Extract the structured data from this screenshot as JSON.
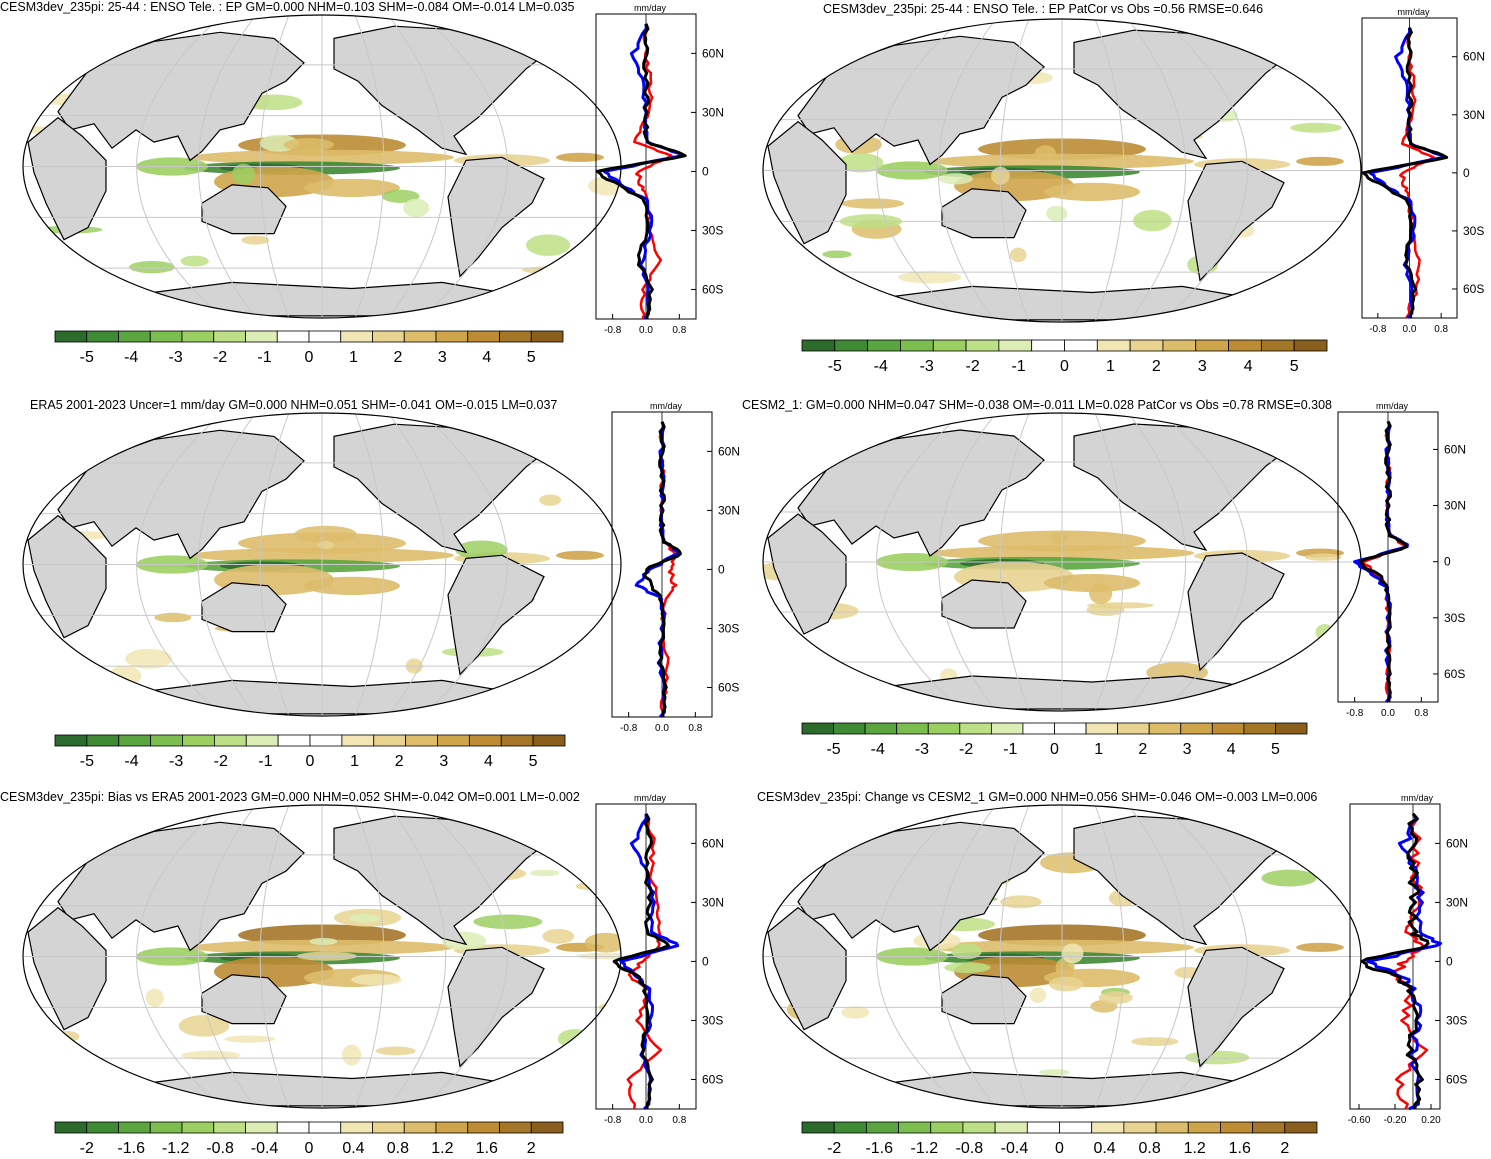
{
  "colors": {
    "land": "#d4d4d4",
    "ocean": "#ffffff",
    "grid": "#c8c8c8",
    "green_scale": [
      "#2d6b2d",
      "#3f8a35",
      "#5aa53f",
      "#7bbd4f",
      "#9ccf62",
      "#bddf85",
      "#dcedb5"
    ],
    "brown_scale": [
      "#f1e6b4",
      "#e8d391",
      "#ddbd6a",
      "#cfa54b",
      "#bd8c34",
      "#a47628",
      "#8a5e1c"
    ],
    "line_red": "#ff0000",
    "line_blue": "#0000ff",
    "line_black": "#000000"
  },
  "zonal_units": "mm/day",
  "panels": [
    {
      "id": "p1",
      "title": "CESM3dev_235pi: 25-44 : ENSO Tele. : EP GM=0.000 NHM=0.103 SHM=-0.084 OM=-0.014 LM=0.035",
      "lat_labels": [
        "60N",
        "30N",
        "0",
        "30S",
        "60S"
      ],
      "zonal_ticks": [
        "-0.8",
        "0.0",
        "0.8"
      ],
      "colorbar_labels": [
        "-5",
        "-4",
        "-3",
        "-2",
        "-1",
        "0",
        "1",
        "2",
        "3",
        "4",
        "5"
      ],
      "strength": 1.0
    },
    {
      "id": "p2",
      "title": "CESM3dev_235pi: 25-44 : ENSO Tele. : EP PatCor vs Obs =0.56 RMSE=0.646",
      "lat_labels": [
        "60N",
        "30N",
        "0",
        "30S",
        "60S"
      ],
      "zonal_ticks": [
        "-0.8",
        "0.0",
        "0.8"
      ],
      "colorbar_labels": [
        "-5",
        "-4",
        "-3",
        "-2",
        "-1",
        "0",
        "1",
        "2",
        "3",
        "4",
        "5"
      ],
      "strength": 1.0
    },
    {
      "id": "p3",
      "title": "ERA5 2001-2023 Uncer=1 mm/day GM=0.000 NHM=0.051 SHM=-0.041 OM=-0.015 LM=0.037",
      "lat_labels": [
        "60N",
        "30N",
        "0",
        "30S",
        "60S"
      ],
      "zonal_ticks": [
        "-0.8",
        "0.0",
        "0.8"
      ],
      "colorbar_labels": [
        "-5",
        "-4",
        "-3",
        "-2",
        "-1",
        "0",
        "1",
        "2",
        "3",
        "4",
        "5"
      ],
      "strength": 0.55
    },
    {
      "id": "p4",
      "title": "CESM2_1: GM=0.000 NHM=0.047 SHM=-0.038 OM=-0.011 LM=0.028 PatCor vs Obs =0.78 RMSE=0.308",
      "lat_labels": [
        "60N",
        "30N",
        "0",
        "30S",
        "60S"
      ],
      "zonal_ticks": [
        "-0.8",
        "0.0",
        "0.8"
      ],
      "colorbar_labels": [
        "-5",
        "-4",
        "-3",
        "-2",
        "-1",
        "0",
        "1",
        "2",
        "3",
        "4",
        "5"
      ],
      "strength": 0.45
    },
    {
      "id": "p5",
      "title": "CESM3dev_235pi: Bias vs ERA5 2001-2023 GM=0.000 NHM=0.052 SHM=-0.042 OM=0.001 LM=-0.002",
      "lat_labels": [
        "60N",
        "30N",
        "0",
        "30S",
        "60S"
      ],
      "zonal_ticks": [
        "-0.8",
        "0.0",
        "0.8"
      ],
      "colorbar_labels": [
        "-2",
        "-1.6",
        "-1.2",
        "-0.8",
        "-0.4",
        "0",
        "0.4",
        "0.8",
        "1.2",
        "1.6",
        "2"
      ],
      "strength": 1.2
    },
    {
      "id": "p6",
      "title": "CESM3dev_235pi: Change vs CESM2_1 GM=0.000 NHM=0.056 SHM=-0.046 OM=-0.003 LM=0.006",
      "lat_labels": [
        "60N",
        "30N",
        "0",
        "30S",
        "60S"
      ],
      "zonal_ticks": [
        "-0.60",
        "-0.20",
        "0.20"
      ],
      "colorbar_labels": [
        "-2",
        "-1.6",
        "-1.2",
        "-0.8",
        "-0.4",
        "0",
        "0.4",
        "0.8",
        "1.2",
        "1.6",
        "2"
      ],
      "strength": 1.2
    }
  ],
  "chart_data": [
    {
      "type": "heatmap",
      "title": "CESM3dev_235pi: 25-44 : ENSO Tele. : EP GM=0.000 NHM=0.103 SHM=-0.084 OM=-0.014 LM=0.035",
      "colorbar_range": [
        -5,
        5
      ],
      "zonal_xlim": [
        -1.2,
        1.2
      ],
      "zonal_ylim": [
        -75,
        80
      ],
      "zonal_lat": [
        -75,
        -60,
        -45,
        -30,
        -15,
        -8,
        0,
        8,
        15,
        30,
        45,
        60,
        75
      ],
      "zonal_black": [
        0.0,
        0.1,
        -0.2,
        0.0,
        0.0,
        -0.6,
        -1.2,
        1.0,
        0.0,
        0.0,
        0.0,
        0.0,
        0.0
      ],
      "zonal_blue": [
        0.0,
        0.05,
        -0.1,
        0.1,
        0.05,
        -0.5,
        -1.0,
        0.9,
        0.0,
        0.0,
        -0.1,
        -0.3,
        0.0
      ],
      "zonal_red": [
        -0.1,
        -0.05,
        0.3,
        0.1,
        0.05,
        -0.1,
        -0.2,
        0.6,
        -0.3,
        0.1,
        0.1,
        0.0,
        0.0
      ]
    },
    {
      "type": "heatmap",
      "title": "CESM3dev_235pi: 25-44 : ENSO Tele. : EP PatCor vs Obs =0.56 RMSE=0.646",
      "colorbar_range": [
        -5,
        5
      ],
      "zonal_xlim": [
        -1.2,
        1.2
      ],
      "zonal_ylim": [
        -75,
        80
      ],
      "zonal_lat": [
        -75,
        -60,
        -45,
        -30,
        -15,
        -8,
        0,
        8,
        15,
        30,
        45,
        60,
        75
      ],
      "zonal_black": [
        0.0,
        0.1,
        -0.1,
        0.0,
        0.0,
        -0.6,
        -1.2,
        1.0,
        0.0,
        0.0,
        0.0,
        0.0,
        0.0
      ],
      "zonal_blue": [
        0.0,
        0.05,
        -0.1,
        0.1,
        0.05,
        -0.5,
        -1.0,
        0.9,
        0.0,
        0.0,
        -0.1,
        -0.3,
        0.0
      ],
      "zonal_red": [
        -0.1,
        0.2,
        0.2,
        0.1,
        0.0,
        -0.1,
        -0.2,
        0.6,
        -0.2,
        0.1,
        0.1,
        0.0,
        0.0
      ]
    },
    {
      "type": "heatmap",
      "title": "ERA5 2001-2023 Uncer=1 mm/day GM=0.000 NHM=0.051 SHM=-0.041 OM=-0.015 LM=0.037",
      "colorbar_range": [
        -5,
        5
      ],
      "zonal_xlim": [
        -1.2,
        1.2
      ],
      "zonal_ylim": [
        -75,
        80
      ],
      "zonal_lat": [
        -75,
        -60,
        -45,
        -30,
        -15,
        -8,
        0,
        8,
        15,
        30,
        45,
        60,
        75
      ],
      "zonal_black": [
        0.0,
        0.05,
        -0.05,
        0.0,
        0.0,
        -0.3,
        -0.4,
        0.5,
        0.0,
        0.0,
        0.0,
        0.0,
        0.0
      ],
      "zonal_blue": [
        0.0,
        0.05,
        -0.05,
        0.0,
        0.0,
        -0.6,
        -0.3,
        0.4,
        0.0,
        0.0,
        0.0,
        0.0,
        0.0
      ],
      "zonal_red": [
        -0.05,
        0.1,
        0.1,
        0.0,
        0.1,
        0.3,
        0.2,
        0.3,
        0.0,
        0.0,
        0.0,
        0.0,
        0.0
      ]
    },
    {
      "type": "heatmap",
      "title": "CESM2_1: GM=0.000 NHM=0.047 SHM=-0.038 OM=-0.011 LM=0.028 PatCor vs Obs =0.78 RMSE=0.308",
      "colorbar_range": [
        -5,
        5
      ],
      "zonal_xlim": [
        -1.2,
        1.2
      ],
      "zonal_ylim": [
        -75,
        80
      ],
      "zonal_lat": [
        -75,
        -60,
        -45,
        -30,
        -15,
        -8,
        0,
        8,
        15,
        30,
        45,
        60,
        75
      ],
      "zonal_black": [
        0.0,
        0.0,
        0.0,
        0.0,
        0.0,
        -0.2,
        -0.7,
        0.5,
        0.0,
        0.0,
        0.0,
        0.0,
        0.0
      ],
      "zonal_blue": [
        0.0,
        0.0,
        0.0,
        0.0,
        0.0,
        -0.3,
        -0.8,
        0.5,
        0.0,
        0.0,
        0.0,
        0.0,
        0.0
      ],
      "zonal_red": [
        0.0,
        0.0,
        0.0,
        0.0,
        0.0,
        -0.2,
        -0.6,
        0.4,
        0.0,
        0.0,
        0.0,
        0.0,
        0.0
      ]
    },
    {
      "type": "heatmap",
      "title": "CESM3dev_235pi: Bias vs ERA5 2001-2023 GM=0.000 NHM=0.052 SHM=-0.042 OM=0.001 LM=-0.002",
      "colorbar_range": [
        -2,
        2
      ],
      "zonal_xlim": [
        -1.2,
        1.2
      ],
      "zonal_ylim": [
        -75,
        80
      ],
      "zonal_lat": [
        -75,
        -60,
        -45,
        -30,
        -15,
        -8,
        0,
        8,
        15,
        30,
        45,
        60,
        75
      ],
      "zonal_black": [
        0.0,
        0.1,
        -0.1,
        0.0,
        0.0,
        -0.2,
        -0.8,
        0.6,
        0.0,
        0.1,
        0.0,
        0.1,
        0.0
      ],
      "zonal_blue": [
        0.0,
        0.1,
        -0.1,
        0.1,
        0.1,
        -0.2,
        -0.6,
        0.8,
        0.1,
        0.2,
        0.0,
        -0.3,
        0.0
      ],
      "zonal_red": [
        -0.3,
        -0.4,
        0.3,
        -0.2,
        0.1,
        -0.4,
        -0.1,
        0.3,
        0.3,
        0.3,
        0.1,
        0.2,
        0.0
      ]
    },
    {
      "type": "heatmap",
      "title": "CESM3dev_235pi: Change vs CESM2_1 GM=0.000 NHM=0.056 SHM=-0.046 OM=-0.003 LM=0.006",
      "colorbar_range": [
        -2,
        2
      ],
      "zonal_xlim": [
        -0.7,
        0.3
      ],
      "zonal_ylim": [
        -75,
        80
      ],
      "zonal_lat": [
        -75,
        -60,
        -45,
        -30,
        -15,
        -8,
        0,
        8,
        15,
        30,
        45,
        60,
        75
      ],
      "zonal_black": [
        0.0,
        0.05,
        -0.05,
        0.0,
        0.0,
        -0.2,
        -0.6,
        0.2,
        0.0,
        0.0,
        0.0,
        0.0,
        0.0
      ],
      "zonal_blue": [
        0.0,
        0.05,
        0.0,
        0.05,
        0.0,
        -0.1,
        -0.5,
        0.3,
        0.05,
        0.1,
        0.0,
        -0.1,
        0.0
      ],
      "zonal_red": [
        -0.1,
        -0.15,
        0.1,
        -0.1,
        0.0,
        -0.2,
        -0.1,
        0.1,
        -0.1,
        0.1,
        0.0,
        0.05,
        0.0
      ]
    }
  ]
}
